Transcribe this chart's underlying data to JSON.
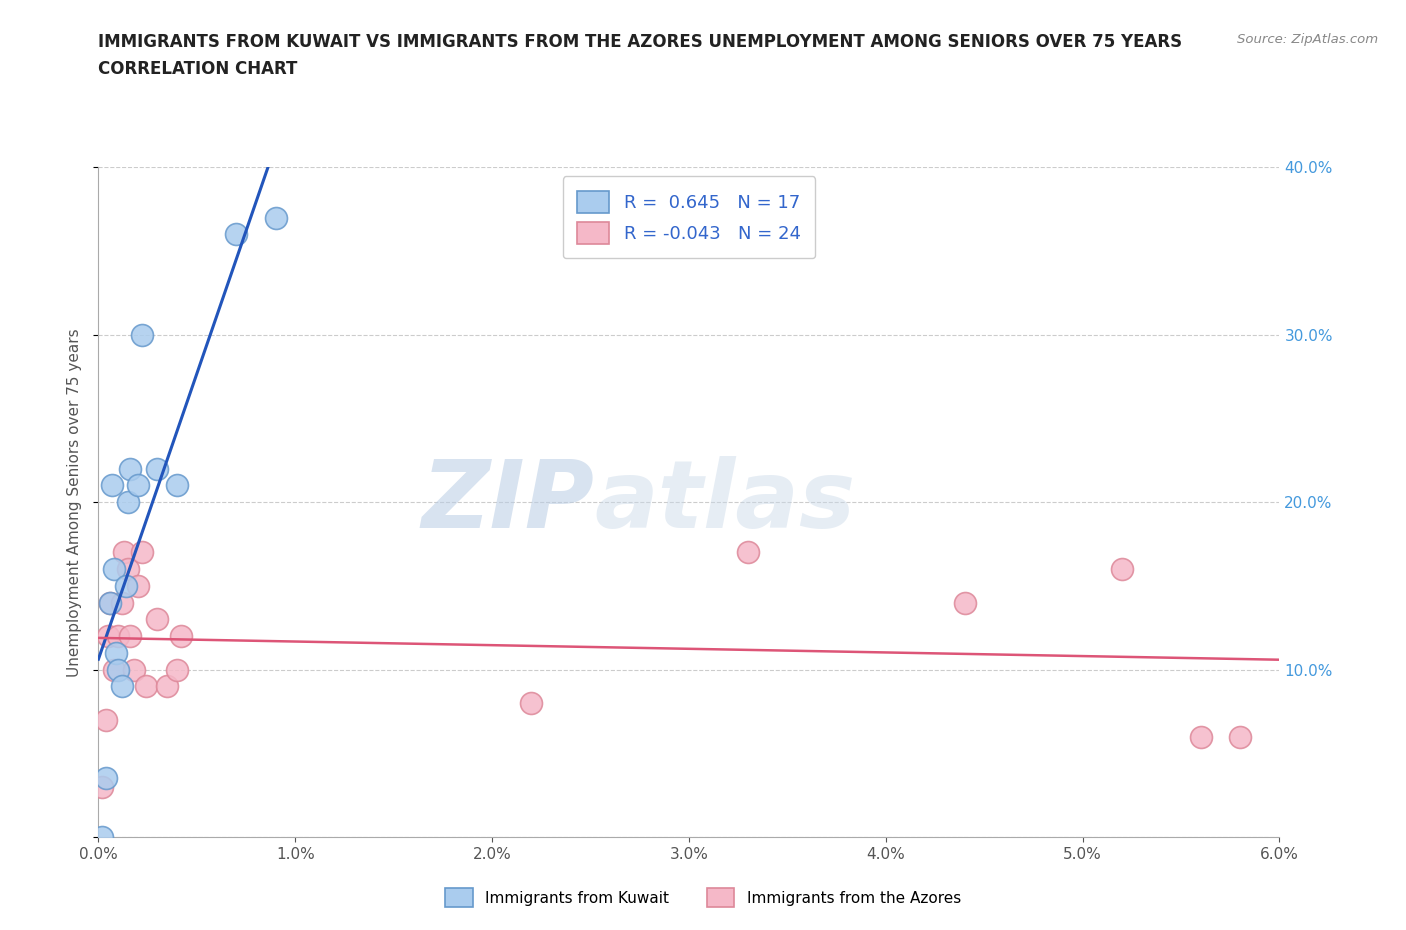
{
  "title_line1": "IMMIGRANTS FROM KUWAIT VS IMMIGRANTS FROM THE AZORES UNEMPLOYMENT AMONG SENIORS OVER 75 YEARS",
  "title_line2": "CORRELATION CHART",
  "source": "Source: ZipAtlas.com",
  "ylabel": "Unemployment Among Seniors over 75 years",
  "xlim": [
    0.0,
    0.06
  ],
  "ylim": [
    0.0,
    0.4
  ],
  "xticks": [
    0.0,
    0.01,
    0.02,
    0.03,
    0.04,
    0.05,
    0.06
  ],
  "xticklabels": [
    "0.0%",
    "1.0%",
    "2.0%",
    "3.0%",
    "4.0%",
    "5.0%",
    "6.0%"
  ],
  "yticks": [
    0.0,
    0.1,
    0.2,
    0.3,
    0.4
  ],
  "yticklabels_right": [
    "",
    "10.0%",
    "20.0%",
    "30.0%",
    "40.0%"
  ],
  "kuwait_R": 0.645,
  "kuwait_N": 17,
  "azores_R": -0.043,
  "azores_N": 24,
  "kuwait_color": "#aaccee",
  "kuwait_edge": "#6699cc",
  "azores_color": "#f5b8c8",
  "azores_edge": "#dd8899",
  "blue_line_color": "#2255bb",
  "pink_line_color": "#dd5577",
  "kuwait_x": [
    0.0002,
    0.0004,
    0.0006,
    0.0007,
    0.0008,
    0.0009,
    0.001,
    0.0012,
    0.0014,
    0.0015,
    0.0016,
    0.002,
    0.0022,
    0.003,
    0.004,
    0.007,
    0.009
  ],
  "kuwait_y": [
    0.0,
    0.035,
    0.14,
    0.21,
    0.16,
    0.11,
    0.1,
    0.09,
    0.15,
    0.2,
    0.22,
    0.21,
    0.3,
    0.22,
    0.21,
    0.36,
    0.37
  ],
  "azores_x": [
    0.0002,
    0.0004,
    0.0005,
    0.0006,
    0.0008,
    0.001,
    0.0012,
    0.0013,
    0.0015,
    0.0016,
    0.0018,
    0.002,
    0.0022,
    0.0024,
    0.003,
    0.0035,
    0.004,
    0.0042,
    0.022,
    0.033,
    0.044,
    0.052,
    0.056,
    0.058
  ],
  "azores_y": [
    0.03,
    0.07,
    0.12,
    0.14,
    0.1,
    0.12,
    0.14,
    0.17,
    0.16,
    0.12,
    0.1,
    0.15,
    0.17,
    0.09,
    0.13,
    0.09,
    0.1,
    0.12,
    0.08,
    0.17,
    0.14,
    0.16,
    0.06,
    0.06
  ],
  "watermark_zip": "ZIP",
  "watermark_atlas": "atlas",
  "background_color": "#ffffff",
  "grid_color": "#cccccc",
  "title_fontsize": 12,
  "label_fontsize": 11,
  "tick_fontsize": 11,
  "legend_fontsize": 13,
  "right_tick_color": "#4499dd"
}
